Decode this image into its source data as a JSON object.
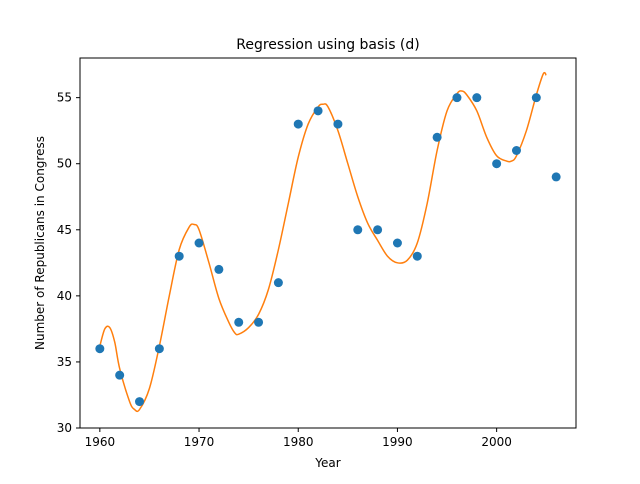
{
  "chart_data": {
    "type": "scatter",
    "title": "Regression using basis (d)",
    "xlabel": "Year",
    "ylabel": "Number of Republicans in Congress",
    "xlim": [
      1958,
      2008
    ],
    "ylim": [
      30,
      58
    ],
    "xticks": [
      1960,
      1970,
      1980,
      1990,
      2000
    ],
    "yticks": [
      30,
      35,
      40,
      45,
      50,
      55
    ],
    "grid": false,
    "colors": {
      "points": "#1f77b4",
      "curve": "#ff7f0e"
    },
    "series": [
      {
        "kind": "scatter",
        "x": [
          1960,
          1962,
          1964,
          1966,
          1968,
          1970,
          1972,
          1974,
          1976,
          1978,
          1980,
          1982,
          1984,
          1986,
          1988,
          1990,
          1992,
          1994,
          1996,
          1998,
          2000,
          2002,
          2004,
          2006
        ],
        "y": [
          36,
          34,
          32,
          36,
          43,
          44,
          42,
          38,
          38,
          41,
          53,
          54,
          53,
          45,
          45,
          44,
          43,
          52,
          55,
          55,
          50,
          51,
          55,
          49
        ]
      },
      {
        "kind": "line",
        "x": [
          1960,
          1960.5,
          1961,
          1961.5,
          1962,
          1963,
          1963.5,
          1964,
          1965,
          1966,
          1967,
          1968,
          1969,
          1969.5,
          1970,
          1971,
          1972,
          1973,
          1973.6,
          1974,
          1975,
          1976,
          1977,
          1978,
          1979,
          1980,
          1981,
          1982,
          1982.5,
          1983,
          1984,
          1985,
          1986,
          1987,
          1988,
          1989,
          1990,
          1991,
          1992,
          1993,
          1994,
          1995,
          1996,
          1996.5,
          1997,
          1998,
          1999,
          2000,
          2001,
          2001.5,
          2002,
          2003,
          2004,
          2004.7,
          2005
        ],
        "y": [
          36.2,
          37.5,
          37.6,
          36.5,
          34.5,
          32.0,
          31.4,
          31.4,
          33.0,
          36.2,
          40.0,
          43.5,
          45.2,
          45.4,
          45.0,
          42.5,
          39.8,
          38.0,
          37.2,
          37.1,
          37.6,
          38.6,
          40.5,
          43.5,
          47.0,
          50.5,
          53.0,
          54.3,
          54.5,
          54.3,
          52.5,
          50.0,
          47.5,
          45.5,
          44.2,
          43.0,
          42.5,
          42.7,
          44.0,
          47.0,
          51.0,
          54.0,
          55.3,
          55.5,
          55.2,
          54.0,
          52.0,
          50.6,
          50.2,
          50.2,
          50.6,
          52.5,
          55.2,
          56.8,
          56.7
        ]
      }
    ]
  }
}
